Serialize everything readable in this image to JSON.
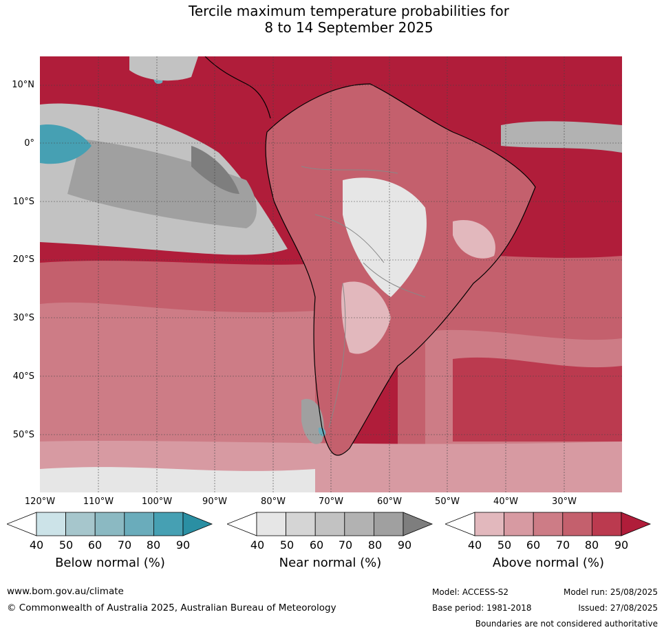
{
  "title_line1": "Tercile maximum temperature probabilities for",
  "title_line2": "8 to 14 September 2025",
  "lat_labels": [
    "10°N",
    "0°",
    "10°S",
    "20°S",
    "30°S",
    "40°S",
    "50°S"
  ],
  "lon_labels": [
    "120°W",
    "110°W",
    "100°W",
    "90°W",
    "80°W",
    "70°W",
    "60°W",
    "50°W",
    "40°W",
    "30°W"
  ],
  "colorbars": [
    {
      "title": "Below normal (%)",
      "ticks": [
        "40",
        "50",
        "60",
        "70",
        "80",
        "90"
      ],
      "colors": [
        "#ffffff",
        "#cce3e8",
        "#a6c6cc",
        "#8bb9c2",
        "#6aacbb",
        "#46a0b3",
        "#2a8fa3"
      ]
    },
    {
      "title": "Near normal (%)",
      "ticks": [
        "40",
        "50",
        "60",
        "70",
        "80",
        "90"
      ],
      "colors": [
        "#ffffff",
        "#e6e6e6",
        "#d5d5d5",
        "#c2c2c2",
        "#b2b2b2",
        "#a0a0a0",
        "#7e7e7e"
      ]
    },
    {
      "title": "Above normal (%)",
      "ticks": [
        "40",
        "50",
        "60",
        "70",
        "80",
        "90"
      ],
      "colors": [
        "#ffffff",
        "#e2b8bd",
        "#d79aa2",
        "#cd7c86",
        "#c4606d",
        "#bb3a4f",
        "#b01d3a"
      ]
    }
  ],
  "footer": {
    "url": "www.bom.gov.au/climate",
    "copyright": "© Commonwealth of Australia 2025, Australian Bureau of Meteorology",
    "model": "Model: ACCESS-S2",
    "base_period": "Base period: 1981-2018",
    "model_run": "Model run: 25/08/2025",
    "issued": "Issued: 27/08/2025",
    "disclaimer": "Boundaries are not considered authoritative"
  }
}
